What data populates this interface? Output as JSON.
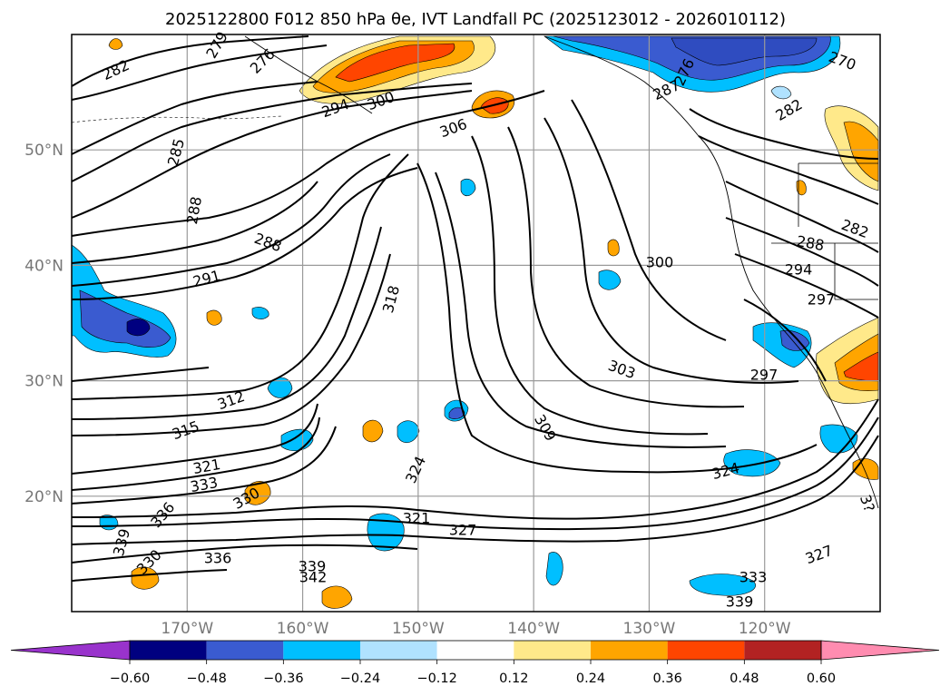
{
  "title": "2025122800 F012 850 hPa θe, IVT Landfall PC (2025123012 - 2026010112)",
  "map": {
    "lat_ticks": [
      "50°N",
      "40°N",
      "30°N",
      "20°N"
    ],
    "lon_ticks": [
      "170°W",
      "160°W",
      "150°W",
      "140°W",
      "130°W",
      "120°W"
    ],
    "extent": {
      "lon": [
        -180,
        -110
      ],
      "lat": [
        10,
        60
      ]
    },
    "gridlines": true,
    "contour_labels": [
      "282",
      "276",
      "279",
      "294",
      "300",
      "306",
      "285",
      "288",
      "288",
      "291",
      "318",
      "312",
      "315",
      "321",
      "333",
      "330",
      "336",
      "339",
      "330",
      "336",
      "339",
      "342",
      "321",
      "327",
      "324",
      "309",
      "303",
      "300",
      "294",
      "297",
      "297",
      "288",
      "282",
      "276",
      "287",
      "282",
      "270",
      "324",
      "333",
      "339",
      "327",
      "3?"
    ]
  },
  "colorbar": {
    "ticks": [
      "−0.60",
      "−0.48",
      "−0.36",
      "−0.24",
      "−0.12",
      "0.12",
      "0.24",
      "0.36",
      "0.48",
      "0.60"
    ],
    "colors": [
      "#9933cc",
      "#000080",
      "#3a5bd0",
      "#00bfff",
      "#b0e2ff",
      "#ffffff",
      "#ffe98a",
      "#ffa500",
      "#ff4500",
      "#b22222",
      "#ff8cb0"
    ],
    "extend": "both"
  }
}
